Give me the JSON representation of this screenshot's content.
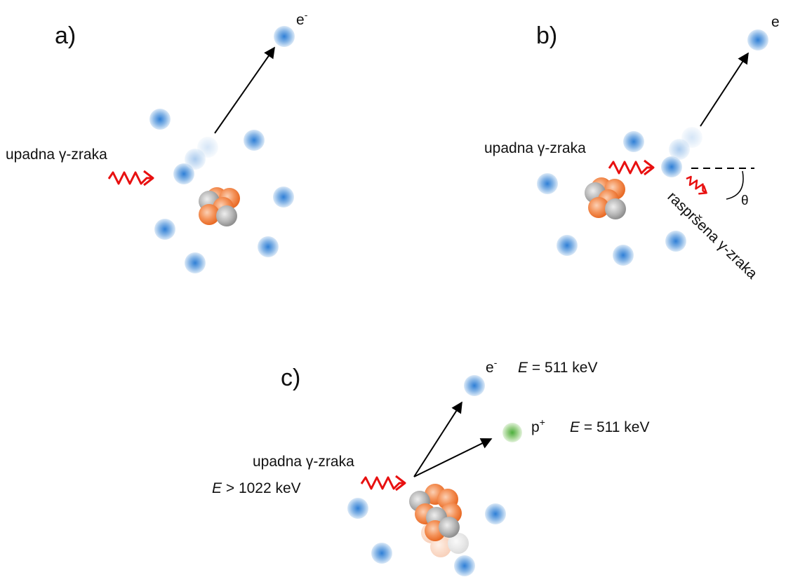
{
  "colors": {
    "electron": "#4a90d9",
    "neutron_orange": "#f07a3a",
    "nucleon_gray": "#a8a8a8",
    "positron": "#6cc04a",
    "photon": "#e81010",
    "arrow": "#000000"
  },
  "icons": {
    "electron": "electron-sphere-icon",
    "positron": "positron-sphere-icon",
    "nucleus": "atomic-nucleus-icon",
    "photon": "wavy-photon-arrow-icon"
  },
  "panels": {
    "a": {
      "label": "a)",
      "incident": "upadna γ-zraka",
      "electron": "e",
      "electron_sup": "-"
    },
    "b": {
      "label": "b)",
      "incident": "upadna γ-zraka",
      "electron": "e",
      "scattered": "raspršena γ-zraka",
      "angle": "θ"
    },
    "c": {
      "label": "c)",
      "incident": "upadna γ-zraka",
      "incident_energy_var": "E",
      "incident_energy_rest": " > 1022 keV",
      "electron": "e",
      "electron_sup": "-",
      "electron_energy_var": "E",
      "electron_energy_rest": " = 511 keV",
      "positron": "p",
      "positron_sup": "+",
      "positron_energy_var": "E",
      "positron_energy_rest": " = 511 keV"
    }
  }
}
